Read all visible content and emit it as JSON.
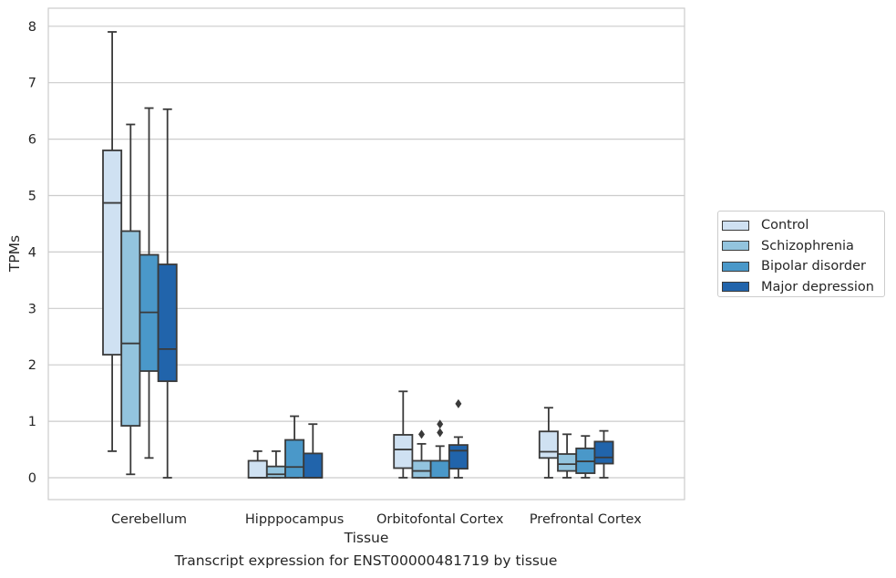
{
  "caption": "Transcript expression for ENST00000481719 by tissue",
  "chart_data": {
    "type": "box",
    "xlabel": "Tissue",
    "ylabel": "TPMs",
    "ylim": [
      -0.4,
      8.3
    ],
    "yticks": [
      0,
      1,
      2,
      3,
      4,
      5,
      6,
      7,
      8
    ],
    "grid": "horizontal",
    "legend_position": "right",
    "categories": [
      "Cerebellum",
      "Hipppocampus",
      "Orbitofontal Cortex",
      "Prefrontal Cortex"
    ],
    "series": [
      {
        "name": "Control",
        "color": "#cfe1f2",
        "boxes": [
          {
            "min": 0.47,
            "q1": 2.18,
            "median": 4.87,
            "q3": 5.8,
            "max": 7.9,
            "outliers": []
          },
          {
            "min": 0.0,
            "q1": 0.0,
            "median": 0.0,
            "q3": 0.3,
            "max": 0.47,
            "outliers": []
          },
          {
            "min": 0.0,
            "q1": 0.17,
            "median": 0.5,
            "q3": 0.76,
            "max": 1.53,
            "outliers": []
          },
          {
            "min": 0.0,
            "q1": 0.35,
            "median": 0.46,
            "q3": 0.82,
            "max": 1.24,
            "outliers": []
          }
        ]
      },
      {
        "name": "Schizophrenia",
        "color": "#93c4de",
        "boxes": [
          {
            "min": 0.06,
            "q1": 0.92,
            "median": 2.38,
            "q3": 4.37,
            "max": 6.26,
            "outliers": []
          },
          {
            "min": 0.0,
            "q1": 0.0,
            "median": 0.06,
            "q3": 0.2,
            "max": 0.47,
            "outliers": []
          },
          {
            "min": 0.0,
            "q1": 0.0,
            "median": 0.12,
            "q3": 0.3,
            "max": 0.6,
            "outliers": [
              0.77
            ]
          },
          {
            "min": 0.0,
            "q1": 0.12,
            "median": 0.24,
            "q3": 0.42,
            "max": 0.77,
            "outliers": []
          }
        ]
      },
      {
        "name": "Bipolar disorder",
        "color": "#4a98c9",
        "boxes": [
          {
            "min": 0.35,
            "q1": 1.89,
            "median": 2.93,
            "q3": 3.95,
            "max": 6.55,
            "outliers": []
          },
          {
            "min": 0.0,
            "q1": 0.0,
            "median": 0.19,
            "q3": 0.67,
            "max": 1.09,
            "outliers": []
          },
          {
            "min": 0.0,
            "q1": 0.0,
            "median": 0.0,
            "q3": 0.3,
            "max": 0.56,
            "outliers": [
              0.8,
              0.95
            ]
          },
          {
            "min": 0.0,
            "q1": 0.08,
            "median": 0.29,
            "q3": 0.52,
            "max": 0.74,
            "outliers": []
          }
        ]
      },
      {
        "name": "Major depression",
        "color": "#2164ab",
        "boxes": [
          {
            "min": 0.0,
            "q1": 1.71,
            "median": 2.28,
            "q3": 3.78,
            "max": 6.53,
            "outliers": []
          },
          {
            "min": 0.0,
            "q1": 0.0,
            "median": 0.0,
            "q3": 0.43,
            "max": 0.95,
            "outliers": []
          },
          {
            "min": 0.0,
            "q1": 0.16,
            "median": 0.48,
            "q3": 0.58,
            "max": 0.72,
            "outliers": [
              1.31
            ]
          },
          {
            "min": 0.0,
            "q1": 0.25,
            "median": 0.36,
            "q3": 0.64,
            "max": 0.83,
            "outliers": []
          }
        ]
      }
    ]
  }
}
